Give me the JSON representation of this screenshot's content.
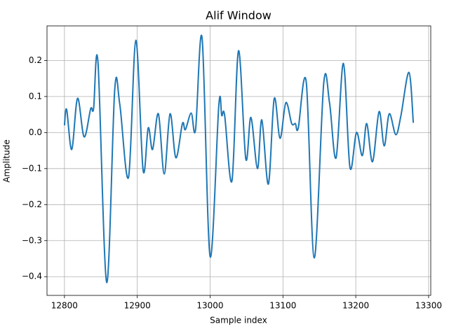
{
  "chart_data": {
    "type": "line",
    "title": "Alif Window",
    "x_label": "Sample index",
    "y_label": "Amplitude",
    "x": [
      12800,
      12803,
      12810,
      12818,
      12827,
      12836,
      12840,
      12846,
      12858,
      12869,
      12876,
      12888,
      12898,
      12908,
      12915,
      12921,
      12929,
      12937,
      12945,
      12953,
      12962,
      12966,
      12974,
      12980,
      12989,
      13000,
      13012,
      13016,
      13020,
      13030,
      13039,
      13049,
      13056,
      13065,
      13071,
      13080,
      13088,
      13096,
      13104,
      13112,
      13117,
      13121,
      13132,
      13143,
      13156,
      13164,
      13173,
      13183,
      13192,
      13201,
      13209,
      13215,
      13223,
      13232,
      13239,
      13246,
      13255,
      13262,
      13273,
      13279
    ],
    "values": [
      0.02,
      0.064,
      -0.047,
      0.095,
      -0.012,
      0.066,
      0.066,
      0.196,
      -0.416,
      0.118,
      0.078,
      -0.124,
      0.256,
      -0.105,
      0.013,
      -0.047,
      0.052,
      -0.115,
      0.052,
      -0.07,
      0.025,
      0.008,
      0.054,
      0.008,
      0.262,
      -0.344,
      0.077,
      0.047,
      0.047,
      -0.134,
      0.227,
      -0.073,
      0.042,
      -0.1,
      0.035,
      -0.143,
      0.094,
      -0.016,
      0.083,
      0.025,
      0.025,
      0.012,
      0.14,
      -0.348,
      0.137,
      0.082,
      -0.07,
      0.192,
      -0.097,
      0.0,
      -0.064,
      0.025,
      -0.081,
      0.058,
      -0.037,
      0.052,
      -0.006,
      0.047,
      0.167,
      0.027
    ],
    "color": "#1f77b4",
    "grid": true,
    "xlim": [
      12776.05,
      13302.95
    ],
    "xticks": [
      12800,
      12900,
      13000,
      13100,
      13200,
      13300
    ],
    "ylim": [
      -0.452,
      0.296
    ],
    "yticks": [
      {
        "value": -0.4,
        "label": "−0.4"
      },
      {
        "value": -0.3,
        "label": "−0.3"
      },
      {
        "value": -0.2,
        "label": "−0.2"
      },
      {
        "value": -0.1,
        "label": "−0.1"
      },
      {
        "value": 0,
        "label": "0.0"
      },
      0.1,
      0.2
    ]
  }
}
